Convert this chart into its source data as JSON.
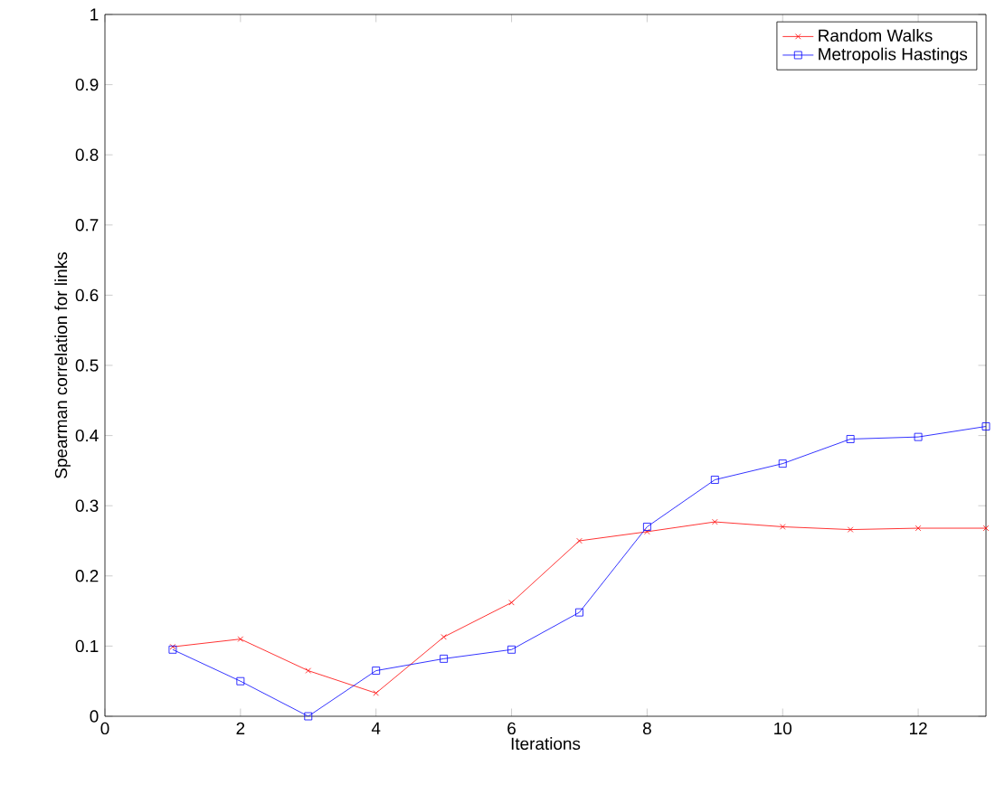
{
  "chart_data": {
    "type": "line",
    "xlabel": "Iterations",
    "ylabel": "Spearman correlation for links",
    "x": [
      1,
      2,
      3,
      4,
      5,
      6,
      7,
      8,
      9,
      10,
      11,
      12,
      13
    ],
    "series": [
      {
        "name": "Random Walks",
        "color": "#ff0000",
        "marker": "cross",
        "values": [
          0.099,
          0.11,
          0.065,
          0.033,
          0.113,
          0.162,
          0.25,
          0.263,
          0.277,
          0.27,
          0.266,
          0.268,
          0.268
        ]
      },
      {
        "name": "Metropolis Hastings",
        "color": "#0000ff",
        "marker": "square",
        "values": [
          0.095,
          0.05,
          0,
          0.065,
          0.082,
          0.095,
          0.148,
          0.27,
          0.337,
          0.36,
          0.395,
          0.398,
          0.413
        ]
      }
    ],
    "xlim": [
      0,
      13
    ],
    "ylim": [
      0,
      1
    ],
    "xticks": [
      0,
      2,
      4,
      6,
      8,
      10,
      12
    ],
    "yticks": [
      0,
      0.1,
      0.2,
      0.3,
      0.4,
      0.5,
      0.6,
      0.7,
      0.8,
      0.9,
      1
    ],
    "grid": false,
    "legend": "top right",
    "line_style": "solid"
  }
}
